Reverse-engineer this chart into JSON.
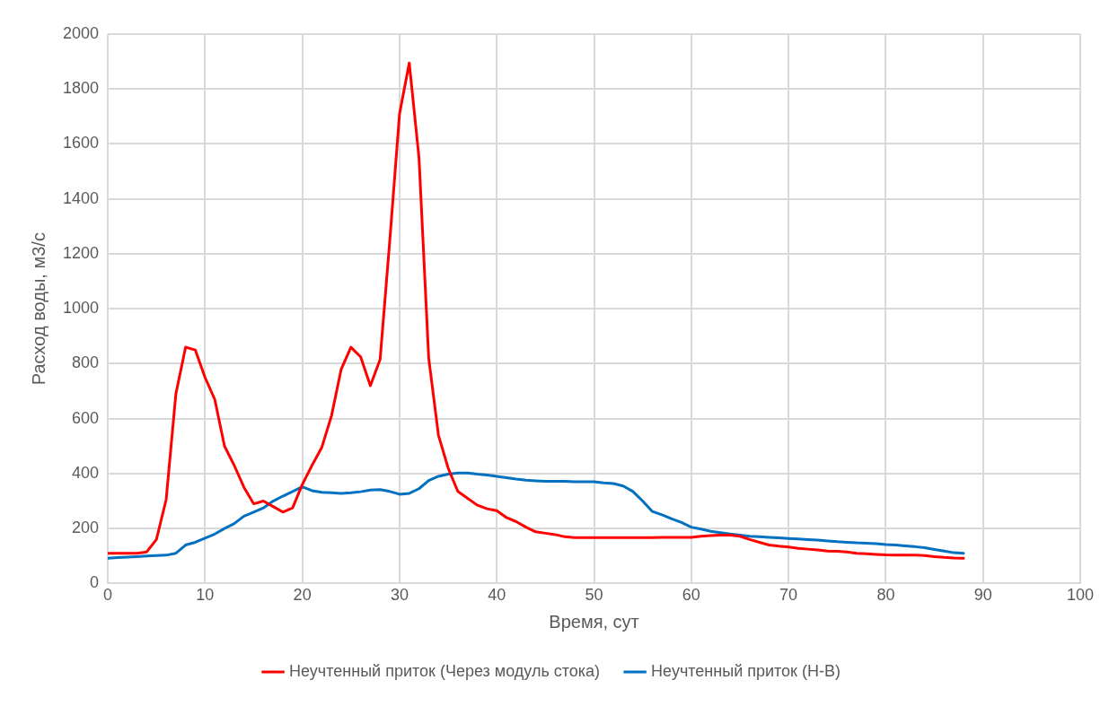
{
  "chart_data": {
    "type": "line",
    "xlabel": "Время, сут",
    "ylabel": "Расход воды, м3/с",
    "x": [
      0,
      1,
      2,
      3,
      4,
      5,
      6,
      7,
      8,
      9,
      10,
      11,
      12,
      13,
      14,
      15,
      16,
      17,
      18,
      19,
      20,
      21,
      22,
      23,
      24,
      25,
      26,
      27,
      28,
      29,
      30,
      31,
      32,
      33,
      34,
      35,
      36,
      37,
      38,
      39,
      40,
      41,
      42,
      43,
      44,
      45,
      46,
      47,
      48,
      49,
      50,
      51,
      52,
      53,
      54,
      55,
      56,
      57,
      58,
      59,
      60,
      61,
      62,
      63,
      64,
      65,
      66,
      67,
      68,
      69,
      70,
      71,
      72,
      73,
      74,
      75,
      76,
      77,
      78,
      79,
      80,
      81,
      82,
      83,
      84,
      85,
      86,
      87,
      88
    ],
    "series": [
      {
        "name": "Неучтенный приток (Через модуль стока)",
        "color": "#ff0000",
        "values": [
          110,
          110,
          110,
          110,
          115,
          160,
          305,
          690,
          860,
          850,
          750,
          670,
          500,
          430,
          350,
          290,
          300,
          280,
          260,
          275,
          360,
          430,
          495,
          610,
          780,
          860,
          825,
          720,
          815,
          1250,
          1710,
          1895,
          1550,
          820,
          540,
          420,
          335,
          310,
          285,
          272,
          265,
          240,
          225,
          205,
          188,
          183,
          178,
          170,
          167,
          167,
          167,
          167,
          167,
          167,
          167,
          167,
          167,
          168,
          168,
          168,
          168,
          172,
          174,
          176,
          176,
          172,
          160,
          150,
          140,
          136,
          133,
          128,
          125,
          122,
          118,
          117,
          115,
          110,
          108,
          106,
          104,
          103,
          103,
          103,
          102,
          98,
          95,
          93,
          92
        ]
      },
      {
        "name": "Неучтенный приток (Н-В)",
        "color": "#0070c0",
        "values": [
          92,
          94,
          96,
          98,
          100,
          102,
          103,
          110,
          140,
          150,
          165,
          180,
          200,
          218,
          245,
          260,
          275,
          300,
          318,
          335,
          352,
          338,
          332,
          330,
          328,
          330,
          334,
          340,
          342,
          335,
          325,
          328,
          345,
          375,
          390,
          398,
          402,
          402,
          398,
          395,
          390,
          385,
          380,
          376,
          374,
          372,
          372,
          372,
          370,
          370,
          370,
          366,
          364,
          355,
          335,
          300,
          262,
          250,
          235,
          222,
          205,
          198,
          190,
          185,
          180,
          176,
          172,
          170,
          168,
          166,
          164,
          162,
          160,
          158,
          155,
          152,
          150,
          148,
          147,
          145,
          142,
          140,
          137,
          134,
          130,
          124,
          118,
          112,
          110
        ]
      }
    ],
    "xlim": [
      0,
      100
    ],
    "xticks": [
      0,
      10,
      20,
      30,
      40,
      50,
      60,
      70,
      80,
      90,
      100
    ],
    "ylim": [
      0,
      2000
    ],
    "yticks": [
      0,
      200,
      400,
      600,
      800,
      1000,
      1200,
      1400,
      1600,
      1800,
      2000
    ],
    "grid": true,
    "legend": "bottom",
    "marker": "none",
    "line_style": "solid"
  }
}
